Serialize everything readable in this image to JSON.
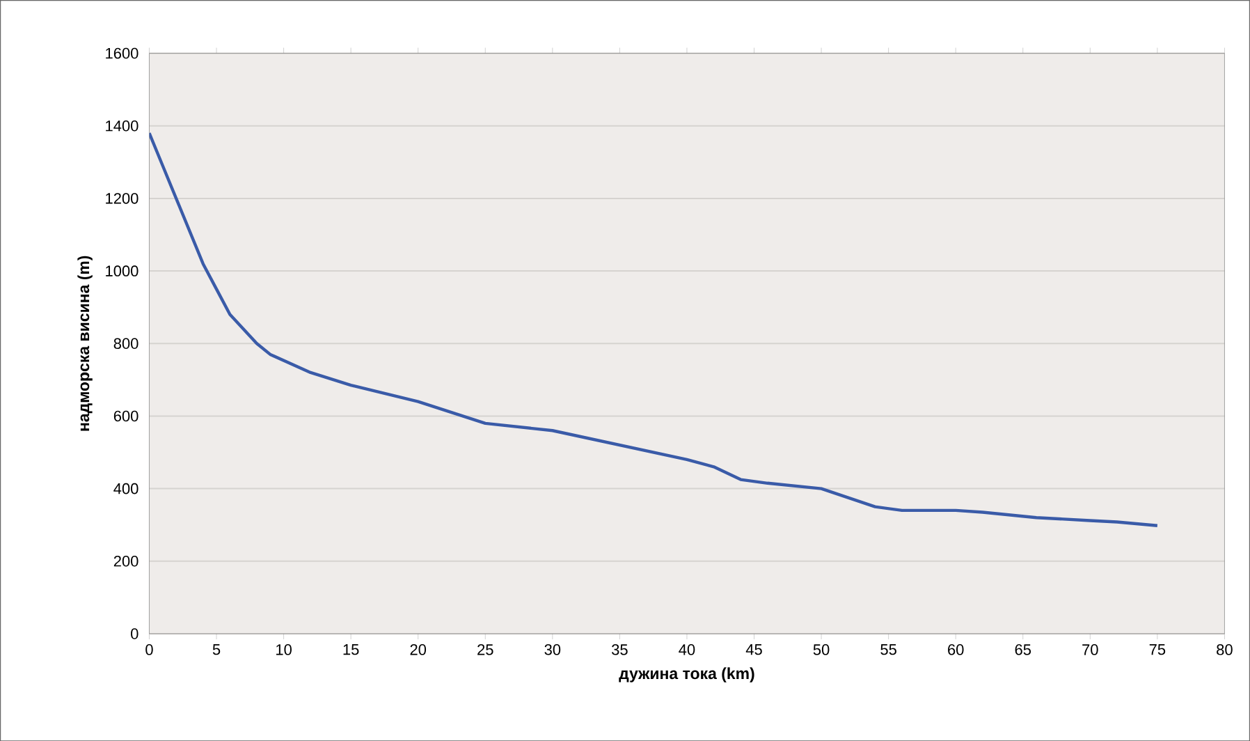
{
  "chart_data": {
    "type": "line",
    "xlabel": "дужина тока (km)",
    "ylabel": "надморска висина (m)",
    "xlim": [
      0,
      80
    ],
    "xticks": [
      0,
      5,
      10,
      15,
      20,
      25,
      30,
      35,
      40,
      45,
      50,
      55,
      60,
      65,
      70,
      75,
      80
    ],
    "ylim": [
      0,
      1600
    ],
    "yticks": [
      0,
      200,
      400,
      600,
      800,
      1000,
      1200,
      1400,
      1600
    ],
    "grid": "y",
    "marker": "none",
    "line_style": "solid",
    "x": [
      0,
      1,
      2,
      4,
      5,
      6,
      8,
      9,
      12,
      15,
      20,
      25,
      30,
      35,
      40,
      42,
      44,
      46,
      50,
      54,
      56,
      60,
      62,
      66,
      70,
      72,
      75
    ],
    "series": [
      {
        "color": "#3a5ba8",
        "values": [
          1380,
          1290,
          1200,
          1020,
          950,
          880,
          800,
          770,
          720,
          685,
          640,
          580,
          560,
          520,
          480,
          460,
          425,
          415,
          400,
          350,
          340,
          340,
          335,
          320,
          312,
          308,
          298
        ]
      }
    ]
  }
}
